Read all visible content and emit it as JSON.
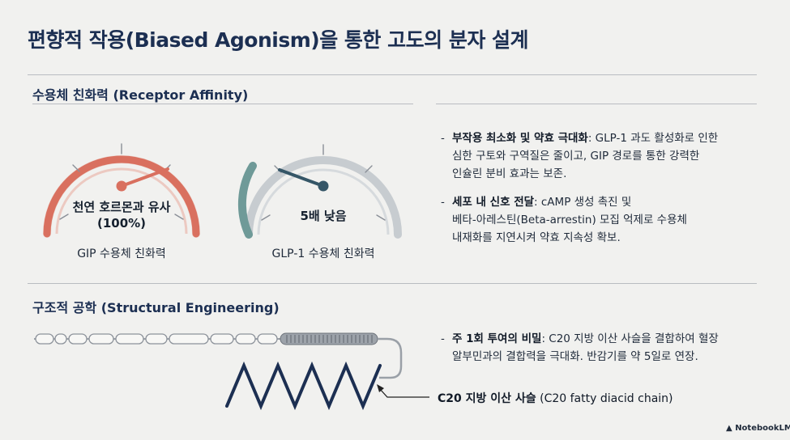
{
  "title": "편향적 작용(Biased Agonism)을 통한 고도의 분자 설계",
  "section1": {
    "heading": "수용체 친화력 (Receptor Affinity)",
    "gauge_left": {
      "line1": "천연 호르몬과 유사",
      "line2": "(100%)",
      "caption": "GIP 수용체 친화력",
      "color": "#d9705f"
    },
    "gauge_right": {
      "line1": "5배 낮음",
      "caption": "GLP-1 수용체 친화력",
      "color": "#6f9a98"
    },
    "bullets": [
      {
        "bold": "부작용 최소화 및 약효 극대화",
        "lines": [
          ": GLP-1 과도 활성화로 인한",
          "심한 구토와 구역질은 줄이고, GIP 경로를 통한 강력한",
          "인슐린 분비 효과는 보존."
        ]
      },
      {
        "bold": "세포 내 신호 전달",
        "lines": [
          ": cAMP 생성 촉진 및",
          "베타-아레스틴(Beta-arrestin) 모집 억제로 수용체",
          "내재화를 지연시켜 약효 지속성 확보."
        ]
      }
    ]
  },
  "section2": {
    "heading": "구조적 공학 (Structural Engineering)",
    "bullet": {
      "bold": "주 1회 투여의 비밀",
      "lines": [
        ": C20 지방 이산 사슬을 결합하여 혈장",
        "알부민과의 결합력을 극대화. 반감기를 약 5일로 연장."
      ]
    },
    "chain_label_bold": "C20 지방 이산 사슬",
    "chain_label_rest": " (C20 fatty diacid chain)"
  },
  "brand": "NotebookLM"
}
